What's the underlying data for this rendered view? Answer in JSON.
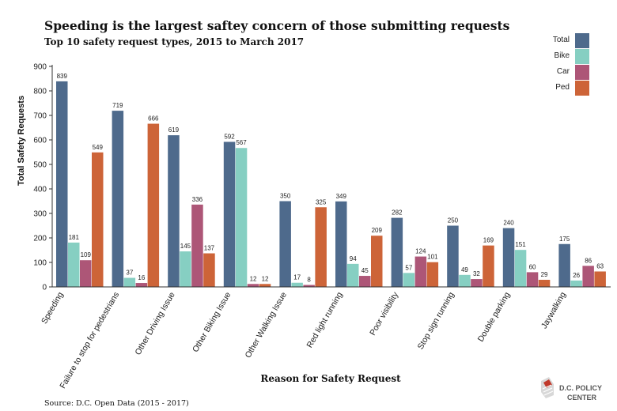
{
  "chart_data": {
    "type": "bar",
    "title": "Speeding is the largest saftey concern of those submitting requests",
    "subtitle": "Top 10 safety request types, 2015 to March 2017",
    "xlabel": "Reason for Safety Request",
    "ylabel": "Total Safety Requests",
    "ylim": [
      0,
      900
    ],
    "yticks": [
      0,
      100,
      200,
      300,
      400,
      500,
      600,
      700,
      800,
      900
    ],
    "categories": [
      "Speeding",
      "Failure to stop for pedestrians",
      "Other Driving Issue",
      "Other Biking Issue",
      "Other Walking Issue",
      "Red light running",
      "Poor visibility",
      "Stop sign running",
      "Double parking",
      "Jaywalking"
    ],
    "series": [
      {
        "name": "Total",
        "color": "#4e6a8c",
        "values": [
          839,
          719,
          619,
          592,
          350,
          349,
          282,
          250,
          240,
          175
        ]
      },
      {
        "name": "Bike",
        "color": "#86cfc2",
        "values": [
          181,
          37,
          145,
          567,
          17,
          94,
          57,
          49,
          151,
          26
        ]
      },
      {
        "name": "Car",
        "color": "#ad5677",
        "values": [
          109,
          16,
          336,
          12,
          8,
          45,
          124,
          32,
          60,
          86
        ]
      },
      {
        "name": "Ped",
        "color": "#cd6438",
        "values": [
          549,
          666,
          137,
          12,
          325,
          209,
          101,
          169,
          29,
          63
        ]
      }
    ],
    "data_labels": [
      [
        "839",
        "181",
        "109",
        "549"
      ],
      [
        "719",
        "37",
        "16",
        "666"
      ],
      [
        "619",
        "145",
        "336",
        "137"
      ],
      [
        "592",
        "567",
        "12",
        "12"
      ],
      [
        "350",
        "17",
        "8",
        "325"
      ],
      [
        "349",
        "94",
        "45",
        "209"
      ],
      [
        "282",
        "57",
        "124",
        "101"
      ],
      [
        "250",
        "49",
        "32",
        "169"
      ],
      [
        "240",
        "151",
        "60",
        "29"
      ],
      [
        "175",
        "26",
        "86",
        "63"
      ]
    ],
    "legend_position": "top-right",
    "grid": false
  },
  "source": "Source: D.C. Open Data (2015 - 2017)",
  "logo": {
    "line1": "D.C. POLICY",
    "line2": "CENTER"
  }
}
